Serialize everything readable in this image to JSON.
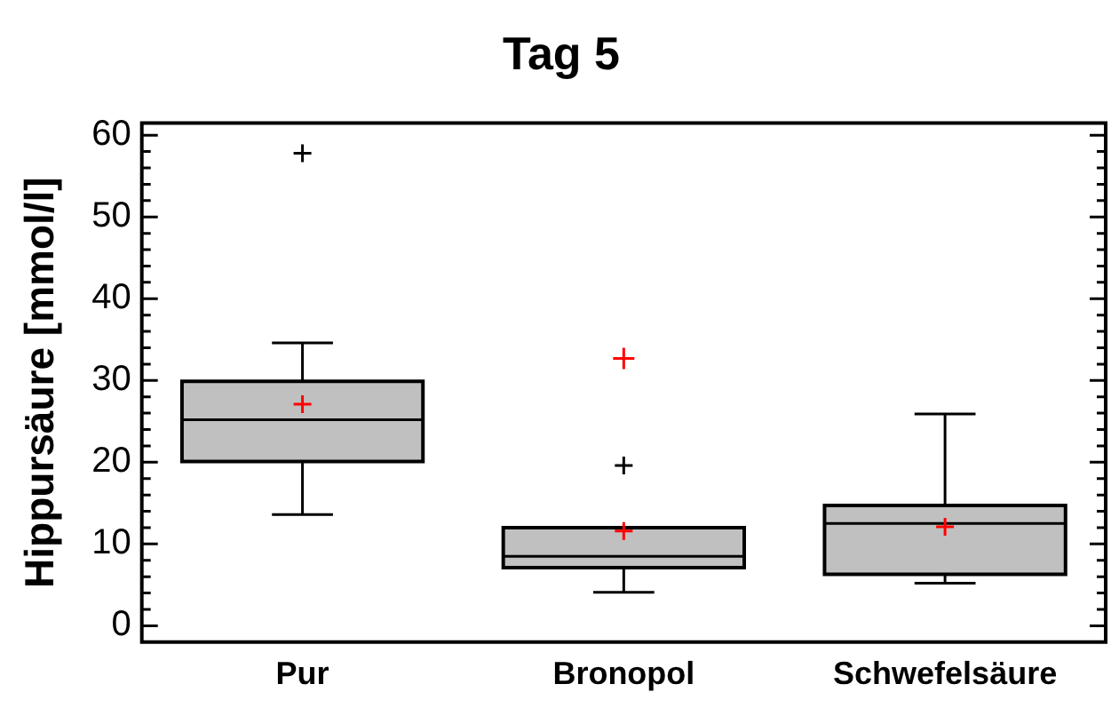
{
  "chart_data": {
    "type": "box",
    "title": "Tag 5",
    "ylabel": "Hippursäure [mmol/l]",
    "categories": [
      "Pur",
      "Bronopol",
      "Schwefelsäure"
    ],
    "series": [
      {
        "color": "#c0c0c0",
        "boxes": [
          {
            "low": 13.6,
            "q1": 20.1,
            "median": 25.2,
            "q3": 29.9,
            "high": 34.6,
            "mean": 27.1,
            "outliers": [
              57.8
            ]
          },
          {
            "low": 4.1,
            "q1": 7.1,
            "median": 8.5,
            "q3": 12.0,
            "high": 12.0,
            "mean": 11.6,
            "outliers": [
              19.6
            ]
          },
          {
            "low": 5.2,
            "q1": 6.3,
            "median": 12.5,
            "q3": 14.7,
            "high": 25.9,
            "mean": 12.1
          }
        ]
      },
      {
        "type": "scatter",
        "color": "#ff0000",
        "x": [
          "Bronopol"
        ],
        "values": [
          32.7
        ]
      }
    ],
    "ylim": [
      -2,
      61.5
    ],
    "yticks": [
      0,
      {
        "value": 2,
        "label": null
      },
      {
        "value": 4,
        "label": null
      },
      {
        "value": 6,
        "label": null
      },
      {
        "value": 8,
        "label": null
      },
      10,
      {
        "value": 12,
        "label": null
      },
      {
        "value": 14,
        "label": null
      },
      {
        "value": 16,
        "label": null
      },
      {
        "value": 18,
        "label": null
      },
      20,
      {
        "value": 22,
        "label": null
      },
      {
        "value": 24,
        "label": null
      },
      {
        "value": 26,
        "label": null
      },
      {
        "value": 28,
        "label": null
      },
      30,
      {
        "value": 32,
        "label": null
      },
      {
        "value": 34,
        "label": null
      },
      {
        "value": 36,
        "label": null
      },
      {
        "value": 38,
        "label": null
      },
      40,
      {
        "value": 42,
        "label": null
      },
      {
        "value": 44,
        "label": null
      },
      {
        "value": 46,
        "label": null
      },
      {
        "value": 48,
        "label": null
      },
      50,
      {
        "value": 52,
        "label": null
      },
      {
        "value": 54,
        "label": null
      },
      {
        "value": 56,
        "label": null
      },
      {
        "value": 58,
        "label": null
      },
      60
    ],
    "marker": "cross",
    "grid": false,
    "legend": false
  }
}
